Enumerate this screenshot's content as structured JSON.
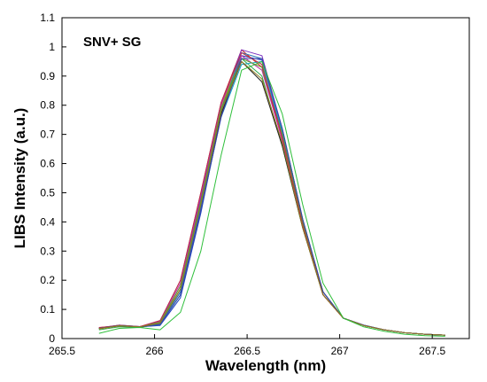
{
  "chart_data": {
    "type": "line",
    "annotation": "SNV+ SG",
    "xlabel": "Wavelength (nm)",
    "ylabel": "LIBS Intensity (a.u.)",
    "xlim": [
      265.5,
      267.7
    ],
    "ylim": [
      0,
      1.1
    ],
    "x_ticks": [
      "265.5",
      "266",
      "266.5",
      "267",
      "267.5"
    ],
    "y_ticks": [
      "0",
      "0.1",
      "0.2",
      "0.3",
      "0.4",
      "0.5",
      "0.6",
      "0.7",
      "0.8",
      "0.9",
      "1",
      "1.1"
    ],
    "x": [
      265.7,
      265.81,
      265.92,
      266.03,
      266.14,
      266.25,
      266.36,
      266.47,
      266.58,
      266.69,
      266.8,
      266.91,
      267.02,
      267.13,
      267.24,
      267.35,
      267.46,
      267.57
    ],
    "grid": false,
    "legend": "none",
    "series": [
      {
        "color": "#1f3fbf",
        "values": [
          0.035,
          0.045,
          0.04,
          0.045,
          0.14,
          0.43,
          0.77,
          0.97,
          0.955,
          0.7,
          0.4,
          0.16,
          0.07,
          0.045,
          0.03,
          0.02,
          0.015,
          0.012
        ]
      },
      {
        "color": "#d11f1f",
        "values": [
          0.038,
          0.044,
          0.04,
          0.06,
          0.2,
          0.5,
          0.81,
          0.99,
          0.93,
          0.68,
          0.39,
          0.15,
          0.07,
          0.045,
          0.03,
          0.02,
          0.015,
          0.012
        ]
      },
      {
        "color": "#2fa84f",
        "values": [
          0.03,
          0.04,
          0.038,
          0.05,
          0.17,
          0.47,
          0.78,
          0.96,
          0.9,
          0.66,
          0.38,
          0.15,
          0.07,
          0.045,
          0.03,
          0.02,
          0.015,
          0.012
        ]
      },
      {
        "color": "#7a2fbf",
        "values": [
          0.036,
          0.046,
          0.041,
          0.055,
          0.18,
          0.48,
          0.8,
          0.99,
          0.97,
          0.72,
          0.41,
          0.16,
          0.07,
          0.046,
          0.03,
          0.02,
          0.015,
          0.012
        ]
      },
      {
        "color": "#16a9c9",
        "values": [
          0.034,
          0.043,
          0.04,
          0.047,
          0.15,
          0.44,
          0.76,
          0.94,
          0.95,
          0.71,
          0.4,
          0.16,
          0.07,
          0.045,
          0.03,
          0.02,
          0.015,
          0.012
        ]
      },
      {
        "color": "#c02fa8",
        "values": [
          0.035,
          0.045,
          0.04,
          0.058,
          0.19,
          0.49,
          0.8,
          0.97,
          0.92,
          0.68,
          0.39,
          0.15,
          0.07,
          0.045,
          0.03,
          0.02,
          0.015,
          0.012
        ]
      },
      {
        "color": "#e07b1f",
        "values": [
          0.033,
          0.043,
          0.04,
          0.052,
          0.17,
          0.46,
          0.79,
          0.98,
          0.94,
          0.69,
          0.39,
          0.15,
          0.07,
          0.045,
          0.03,
          0.02,
          0.015,
          0.012
        ]
      },
      {
        "color": "#222222",
        "values": [
          0.034,
          0.044,
          0.04,
          0.05,
          0.16,
          0.45,
          0.77,
          0.95,
          0.88,
          0.66,
          0.38,
          0.15,
          0.07,
          0.045,
          0.03,
          0.02,
          0.015,
          0.012
        ]
      },
      {
        "color": "#2a7ab8",
        "values": [
          0.036,
          0.046,
          0.041,
          0.05,
          0.16,
          0.45,
          0.78,
          0.98,
          0.96,
          0.72,
          0.41,
          0.16,
          0.07,
          0.046,
          0.03,
          0.02,
          0.015,
          0.012
        ]
      },
      {
        "color": "#5aa62a",
        "values": [
          0.034,
          0.044,
          0.04,
          0.056,
          0.18,
          0.47,
          0.79,
          0.96,
          0.93,
          0.7,
          0.4,
          0.16,
          0.07,
          0.045,
          0.03,
          0.02,
          0.015,
          0.012
        ]
      },
      {
        "color": "#b82f4f",
        "values": [
          0.037,
          0.046,
          0.041,
          0.062,
          0.2,
          0.5,
          0.81,
          0.98,
          0.94,
          0.69,
          0.39,
          0.15,
          0.07,
          0.045,
          0.03,
          0.02,
          0.015,
          0.012
        ]
      },
      {
        "color": "#3b3fa8",
        "values": [
          0.035,
          0.045,
          0.04,
          0.048,
          0.15,
          0.44,
          0.76,
          0.96,
          0.96,
          0.72,
          0.41,
          0.16,
          0.07,
          0.046,
          0.03,
          0.02,
          0.015,
          0.012
        ]
      },
      {
        "color": "#8f7a1f",
        "values": [
          0.034,
          0.044,
          0.04,
          0.053,
          0.17,
          0.46,
          0.78,
          0.95,
          0.89,
          0.67,
          0.38,
          0.15,
          0.07,
          0.045,
          0.03,
          0.02,
          0.015,
          0.012
        ]
      },
      {
        "color": "#2ebf3a",
        "values": [
          0.018,
          0.035,
          0.038,
          0.03,
          0.09,
          0.3,
          0.63,
          0.92,
          0.95,
          0.77,
          0.46,
          0.19,
          0.07,
          0.04,
          0.025,
          0.015,
          0.01,
          0.008
        ]
      }
    ]
  }
}
